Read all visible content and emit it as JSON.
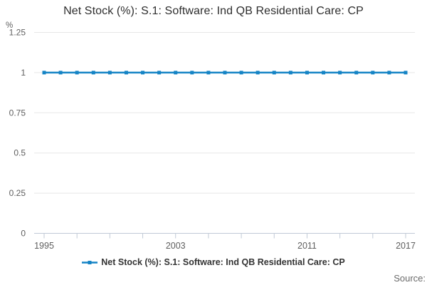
{
  "page": {
    "title": "Net Stock (%): S.1: Software: Ind QB Residential Care: CP",
    "source_label": "Source:"
  },
  "legend": {
    "label": "Net Stock (%): S.1: Software: Ind QB Residential Care: CP"
  },
  "colors": {
    "series": "#1584c5",
    "grid": "#e7e7e7",
    "axis": "#c1cad6",
    "tick_text": "#5f5f5f",
    "unit_text": "#5f5f5f",
    "title_text": "#2e2e2e",
    "legend_text": "#333333",
    "source_text": "#6a6a6a"
  },
  "chart_data": {
    "type": "line",
    "title": "Net Stock (%): S.1: Software: Ind QB Residential Care: CP",
    "xlabel": "",
    "ylabel": "%",
    "x": [
      1995,
      1996,
      1997,
      1998,
      1999,
      2000,
      2001,
      2002,
      2003,
      2004,
      2005,
      2006,
      2007,
      2008,
      2009,
      2010,
      2011,
      2012,
      2013,
      2014,
      2015,
      2016,
      2017
    ],
    "series": [
      {
        "name": "Net Stock (%): S.1: Software: Ind QB Residential Care: CP",
        "values": [
          1,
          1,
          1,
          1,
          1,
          1,
          1,
          1,
          1,
          1,
          1,
          1,
          1,
          1,
          1,
          1,
          1,
          1,
          1,
          1,
          1,
          1,
          1
        ]
      }
    ],
    "ylim": [
      0,
      1.25
    ],
    "yticks": [
      0,
      0.25,
      0.5,
      0.75,
      1,
      1.25
    ],
    "ytick_labels": [
      "0",
      "0.25",
      "0.5",
      "0.75",
      "1",
      "1.25"
    ],
    "xticks": [
      1995,
      1997,
      1999,
      2001,
      2003,
      2005,
      2007,
      2009,
      2011,
      2013,
      2015,
      2017
    ],
    "xtick_labeled_years": [
      1995,
      2003,
      2011,
      2017
    ],
    "xtick_labels": [
      "1995",
      "2003",
      "2011",
      "2017"
    ],
    "grid": true,
    "legend_position": "bottom",
    "marker": "square"
  }
}
